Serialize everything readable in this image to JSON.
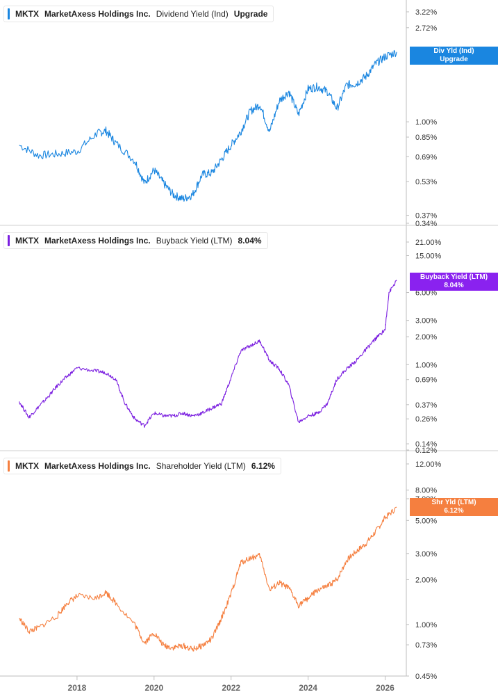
{
  "panels": [
    {
      "ticker": "MKTX",
      "company": "MarketAxess Holdings Inc.",
      "metric": "Dividend Yield (Ind)",
      "value": "Upgrade",
      "color": "#1a86e0",
      "tag_line1": "Div Yld (Ind)",
      "tag_line2": "Upgrade",
      "tag_partial_label": "2.00%",
      "yticks": [
        "3.22%",
        "2.72%",
        "1.00%",
        "0.85%",
        "0.69%",
        "0.53%",
        "0.37%",
        "0.34%"
      ]
    },
    {
      "ticker": "MKTX",
      "company": "MarketAxess Holdings Inc.",
      "metric": "Buyback Yield (LTM)",
      "value": "8.04%",
      "color": "#7b1fe0",
      "tag_line1": "Buyback Yield (LTM)",
      "tag_line2": "8.04%",
      "yticks": [
        "21.00%",
        "15.00%",
        "6.00%",
        "3.00%",
        "2.00%",
        "1.00%",
        "0.69%",
        "0.37%",
        "0.26%",
        "0.14%",
        "0.12%"
      ]
    },
    {
      "ticker": "MKTX",
      "company": "MarketAxess Holdings Inc.",
      "metric": "Shareholder Yield (LTM)",
      "value": "6.12%",
      "color": "#f57f3f",
      "tag_line1": "Shr Yld (LTM)",
      "tag_line2": "6.12%",
      "yticks": [
        "12.00%",
        "8.00%",
        "7.00%",
        "5.00%",
        "3.00%",
        "2.00%",
        "1.00%",
        "0.73%",
        "0.45%"
      ]
    }
  ],
  "x_axis_labels": [
    "2018",
    "2020",
    "2022",
    "2024",
    "2026"
  ],
  "chart_data": [
    {
      "type": "line",
      "title": "MKTX MarketAxess Holdings Inc. Dividend Yield (Ind)",
      "ylabel": "",
      "yscale": "log",
      "ylim": [
        0.34,
        3.22
      ],
      "series": [
        {
          "name": "Dividend Yield (Ind)",
          "x": [
            2016.5,
            2017.0,
            2017.5,
            2018.0,
            2018.5,
            2018.75,
            2019.0,
            2019.5,
            2019.75,
            2020.0,
            2020.25,
            2020.5,
            2020.75,
            2021.0,
            2021.25,
            2021.5,
            2021.75,
            2022.0,
            2022.25,
            2022.5,
            2022.75,
            2023.0,
            2023.25,
            2023.5,
            2023.75,
            2024.0,
            2024.25,
            2024.5,
            2024.75,
            2025.0,
            2025.25,
            2025.5,
            2025.75,
            2026.0,
            2026.3
          ],
          "values": [
            0.78,
            0.7,
            0.71,
            0.73,
            0.88,
            0.91,
            0.8,
            0.66,
            0.52,
            0.6,
            0.52,
            0.46,
            0.44,
            0.46,
            0.57,
            0.58,
            0.67,
            0.78,
            0.9,
            1.12,
            1.2,
            0.9,
            1.25,
            1.38,
            1.08,
            1.42,
            1.45,
            1.38,
            1.15,
            1.48,
            1.5,
            1.62,
            1.85,
            2.0,
            2.1
          ]
        }
      ]
    },
    {
      "type": "line",
      "title": "MKTX MarketAxess Holdings Inc. Buyback Yield (LTM)",
      "ylabel": "",
      "yscale": "log",
      "ylim": [
        0.12,
        21.0
      ],
      "series": [
        {
          "name": "Buyback Yield (LTM)",
          "x": [
            2016.5,
            2016.75,
            2017.0,
            2017.25,
            2017.5,
            2017.75,
            2018.0,
            2018.5,
            2018.75,
            2019.0,
            2019.25,
            2019.5,
            2019.75,
            2020.0,
            2020.25,
            2020.5,
            2020.75,
            2021.0,
            2021.25,
            2021.5,
            2021.75,
            2022.0,
            2022.25,
            2022.5,
            2022.75,
            2023.0,
            2023.25,
            2023.5,
            2023.75,
            2024.0,
            2024.25,
            2024.5,
            2024.75,
            2025.0,
            2025.25,
            2025.5,
            2025.75,
            2026.0,
            2026.1,
            2026.3
          ],
          "values": [
            0.4,
            0.27,
            0.35,
            0.45,
            0.6,
            0.75,
            0.92,
            0.85,
            0.82,
            0.7,
            0.38,
            0.26,
            0.22,
            0.3,
            0.28,
            0.28,
            0.3,
            0.28,
            0.3,
            0.34,
            0.38,
            0.72,
            1.4,
            1.6,
            1.8,
            1.1,
            0.9,
            0.6,
            0.24,
            0.28,
            0.3,
            0.38,
            0.7,
            0.9,
            1.1,
            1.45,
            1.9,
            2.4,
            6.0,
            8.04
          ]
        }
      ]
    },
    {
      "type": "line",
      "title": "MKTX MarketAxess Holdings Inc. Shareholder Yield (LTM)",
      "ylabel": "",
      "yscale": "log",
      "ylim": [
        0.45,
        12.0
      ],
      "series": [
        {
          "name": "Shareholder Yield (LTM)",
          "x": [
            2016.5,
            2016.75,
            2017.0,
            2017.5,
            2017.75,
            2018.0,
            2018.5,
            2018.75,
            2019.0,
            2019.5,
            2019.75,
            2020.0,
            2020.25,
            2020.5,
            2020.75,
            2021.0,
            2021.25,
            2021.5,
            2021.75,
            2022.0,
            2022.25,
            2022.5,
            2022.75,
            2023.0,
            2023.25,
            2023.5,
            2023.75,
            2024.0,
            2024.25,
            2024.5,
            2024.75,
            2025.0,
            2025.25,
            2025.5,
            2025.75,
            2026.0,
            2026.3
          ],
          "values": [
            1.1,
            0.9,
            0.95,
            1.15,
            1.4,
            1.55,
            1.5,
            1.65,
            1.4,
            1.0,
            0.75,
            0.88,
            0.72,
            0.7,
            0.72,
            0.68,
            0.72,
            0.8,
            1.1,
            1.6,
            2.6,
            2.8,
            2.9,
            1.7,
            1.9,
            1.75,
            1.35,
            1.5,
            1.7,
            1.8,
            2.0,
            2.7,
            3.1,
            3.5,
            4.2,
            5.2,
            6.12
          ]
        }
      ]
    }
  ]
}
